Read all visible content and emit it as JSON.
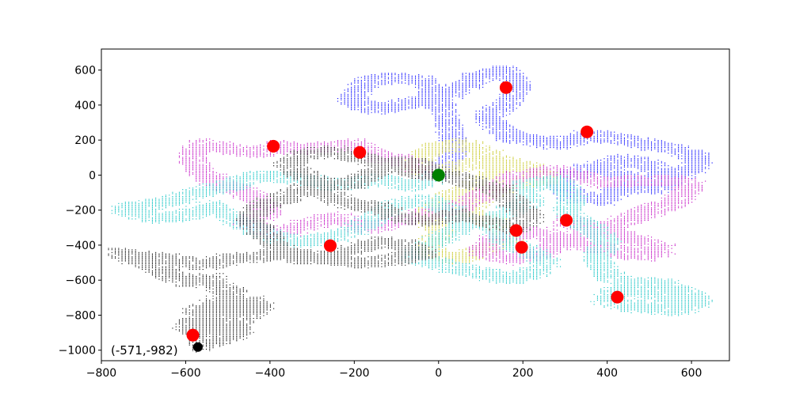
{
  "chart_data": {
    "type": "scatter",
    "title": "",
    "xlabel": "",
    "ylabel": "",
    "xlim": [
      -800,
      690
    ],
    "ylim": [
      -1060,
      720
    ],
    "xticks": [
      -800,
      -600,
      -400,
      -200,
      0,
      200,
      400,
      600
    ],
    "yticks": [
      -1000,
      -800,
      -600,
      -400,
      -200,
      0,
      200,
      400,
      600
    ],
    "xtick_labels": [
      "−800",
      "−600",
      "−400",
      "−200",
      "0",
      "200",
      "400",
      "600"
    ],
    "ytick_labels": [
      "−1000",
      "−800",
      "−600",
      "−400",
      "−200",
      "0",
      "200",
      "400",
      "600"
    ],
    "grid": false,
    "walk_series": [
      {
        "color": "#0000ff",
        "points": [
          [
            -5,
            -5
          ],
          [
            40,
            150
          ],
          [
            10,
            380
          ],
          [
            -40,
            540
          ],
          [
            -120,
            560
          ],
          [
            -180,
            520
          ],
          [
            -210,
            430
          ],
          [
            -150,
            380
          ],
          [
            -50,
            420
          ],
          [
            30,
            470
          ],
          [
            90,
            560
          ],
          [
            160,
            600
          ],
          [
            190,
            520
          ],
          [
            170,
            430
          ],
          [
            110,
            330
          ],
          [
            170,
            220
          ],
          [
            280,
            180
          ],
          [
            360,
            230
          ],
          [
            450,
            200
          ],
          [
            560,
            150
          ],
          [
            620,
            100
          ],
          [
            600,
            30
          ],
          [
            530,
            -10
          ],
          [
            440,
            -60
          ],
          [
            390,
            -140
          ],
          [
            320,
            -120
          ],
          [
            280,
            -40
          ],
          [
            350,
            40
          ],
          [
            440,
            90
          ],
          [
            520,
            40
          ],
          [
            560,
            -30
          ],
          [
            500,
            -80
          ],
          [
            400,
            30
          ]
        ]
      },
      {
        "color": "#bfbf00",
        "points": [
          [
            -5,
            -5
          ],
          [
            -60,
            60
          ],
          [
            -20,
            150
          ],
          [
            60,
            180
          ],
          [
            120,
            120
          ],
          [
            140,
            20
          ],
          [
            80,
            -60
          ],
          [
            20,
            -130
          ],
          [
            -30,
            -240
          ],
          [
            10,
            -330
          ],
          [
            -30,
            -420
          ],
          [
            30,
            -480
          ],
          [
            100,
            -430
          ],
          [
            170,
            -360
          ],
          [
            130,
            -270
          ],
          [
            60,
            -200
          ],
          [
            100,
            -120
          ],
          [
            180,
            -40
          ],
          [
            260,
            -20
          ],
          [
            220,
            40
          ],
          [
            140,
            80
          ],
          [
            60,
            60
          ],
          [
            0,
            0
          ]
        ]
      },
      {
        "color": "#bf00bf",
        "points": [
          [
            -5,
            -5
          ],
          [
            -80,
            80
          ],
          [
            -150,
            110
          ],
          [
            -200,
            180
          ],
          [
            -280,
            160
          ],
          [
            -340,
            150
          ],
          [
            -380,
            170
          ],
          [
            -420,
            130
          ],
          [
            -500,
            150
          ],
          [
            -560,
            180
          ],
          [
            -590,
            110
          ],
          [
            -560,
            0
          ],
          [
            -500,
            -60
          ],
          [
            -440,
            -120
          ],
          [
            -400,
            -200
          ],
          [
            -460,
            -280
          ],
          [
            -380,
            -330
          ],
          [
            -300,
            -270
          ],
          [
            -240,
            -240
          ],
          [
            -170,
            -300
          ],
          [
            -100,
            -260
          ],
          [
            -20,
            -220
          ],
          [
            60,
            -170
          ],
          [
            110,
            -100
          ],
          [
            180,
            -10
          ],
          [
            280,
            30
          ],
          [
            390,
            -40
          ],
          [
            460,
            -30
          ],
          [
            540,
            -30
          ],
          [
            600,
            -50
          ],
          [
            560,
            -150
          ],
          [
            480,
            -220
          ],
          [
            400,
            -300
          ],
          [
            320,
            -350
          ],
          [
            260,
            -430
          ],
          [
            180,
            -480
          ],
          [
            100,
            -430
          ],
          [
            140,
            -350
          ],
          [
            230,
            -320
          ],
          [
            320,
            -380
          ],
          [
            400,
            -420
          ],
          [
            480,
            -460
          ],
          [
            530,
            -420
          ],
          [
            460,
            -360
          ],
          [
            380,
            -300
          ],
          [
            300,
            -260
          ]
        ]
      },
      {
        "color": "#00bfbf",
        "points": [
          [
            -5,
            -5
          ],
          [
            -70,
            -60
          ],
          [
            -150,
            -20
          ],
          [
            -240,
            -60
          ],
          [
            -300,
            -30
          ],
          [
            -370,
            -10
          ],
          [
            -440,
            0
          ],
          [
            -500,
            -60
          ],
          [
            -560,
            -90
          ],
          [
            -620,
            -130
          ],
          [
            -690,
            -170
          ],
          [
            -750,
            -190
          ],
          [
            -680,
            -240
          ],
          [
            -600,
            -230
          ],
          [
            -540,
            -170
          ],
          [
            -490,
            -250
          ],
          [
            -440,
            -300
          ],
          [
            -380,
            -360
          ],
          [
            -320,
            -380
          ],
          [
            -250,
            -350
          ],
          [
            -200,
            -310
          ],
          [
            -150,
            -240
          ],
          [
            -100,
            -160
          ],
          [
            -30,
            -140
          ],
          [
            30,
            -200
          ],
          [
            60,
            -290
          ],
          [
            0,
            -360
          ],
          [
            -60,
            -460
          ],
          [
            20,
            -520
          ],
          [
            110,
            -560
          ],
          [
            170,
            -590
          ],
          [
            220,
            -560
          ],
          [
            260,
            -500
          ],
          [
            220,
            -440
          ],
          [
            160,
            -380
          ],
          [
            120,
            -280
          ],
          [
            160,
            -200
          ],
          [
            220,
            -140
          ],
          [
            200,
            -60
          ],
          [
            280,
            -30
          ],
          [
            320,
            -120
          ],
          [
            300,
            -220
          ],
          [
            360,
            -300
          ],
          [
            400,
            -380
          ],
          [
            370,
            -470
          ],
          [
            400,
            -560
          ],
          [
            450,
            -620
          ],
          [
            520,
            -610
          ],
          [
            580,
            -660
          ],
          [
            620,
            -720
          ],
          [
            560,
            -770
          ],
          [
            500,
            -760
          ],
          [
            430,
            -730
          ],
          [
            390,
            -700
          ],
          [
            440,
            -640
          ],
          [
            500,
            -680
          ],
          [
            560,
            -720
          ],
          [
            610,
            -700
          ],
          [
            520,
            -650
          ]
        ]
      },
      {
        "color": "#000000",
        "points": [
          [
            -5,
            -5
          ],
          [
            -60,
            20
          ],
          [
            -120,
            60
          ],
          [
            -200,
            110
          ],
          [
            -260,
            140
          ],
          [
            -320,
            120
          ],
          [
            -360,
            60
          ],
          [
            -320,
            0
          ],
          [
            -260,
            -60
          ],
          [
            -200,
            -40
          ],
          [
            -150,
            20
          ],
          [
            -100,
            80
          ],
          [
            -40,
            60
          ],
          [
            20,
            0
          ],
          [
            80,
            -40
          ],
          [
            140,
            -80
          ],
          [
            180,
            -160
          ],
          [
            220,
            -240
          ],
          [
            180,
            -300
          ],
          [
            110,
            -260
          ],
          [
            40,
            -220
          ],
          [
            -30,
            -260
          ],
          [
            -90,
            -240
          ],
          [
            -150,
            -180
          ],
          [
            -210,
            -160
          ],
          [
            -270,
            -110
          ],
          [
            -300,
            -60
          ],
          [
            -360,
            -120
          ],
          [
            -420,
            -170
          ],
          [
            -450,
            -250
          ],
          [
            -420,
            -320
          ],
          [
            -380,
            -420
          ],
          [
            -330,
            -480
          ],
          [
            -260,
            -460
          ],
          [
            -200,
            -420
          ],
          [
            -140,
            -380
          ],
          [
            -80,
            -400
          ],
          [
            -30,
            -440
          ],
          [
            -100,
            -480
          ],
          [
            -180,
            -500
          ],
          [
            -260,
            -480
          ],
          [
            -340,
            -440
          ],
          [
            -420,
            -460
          ],
          [
            -500,
            -480
          ],
          [
            -560,
            -510
          ],
          [
            -640,
            -480
          ],
          [
            -720,
            -460
          ],
          [
            -760,
            -440
          ],
          [
            -700,
            -500
          ],
          [
            -640,
            -560
          ],
          [
            -600,
            -610
          ],
          [
            -540,
            -590
          ],
          [
            -520,
            -640
          ],
          [
            -480,
            -680
          ],
          [
            -520,
            -720
          ],
          [
            -580,
            -780
          ],
          [
            -540,
            -800
          ],
          [
            -470,
            -800
          ],
          [
            -420,
            -760
          ],
          [
            -440,
            -720
          ],
          [
            -500,
            -760
          ],
          [
            -560,
            -820
          ],
          [
            -600,
            -860
          ],
          [
            -560,
            -900
          ],
          [
            -520,
            -860
          ],
          [
            -470,
            -850
          ],
          [
            -480,
            -900
          ],
          [
            -520,
            -940
          ],
          [
            -560,
            -960
          ],
          [
            -571,
            -982
          ]
        ]
      }
    ],
    "red_points": [
      [
        160,
        500
      ],
      [
        352,
        247
      ],
      [
        -392,
        165
      ],
      [
        -187,
        130
      ],
      [
        303,
        -258
      ],
      [
        184,
        -316
      ],
      [
        197,
        -412
      ],
      [
        -257,
        -403
      ],
      [
        424,
        -697
      ],
      [
        -583,
        -914
      ]
    ],
    "start_point": [
      0,
      0
    ],
    "end_point": [
      -571,
      -982
    ],
    "end_label": "(-571,-982)",
    "colors": {
      "red": "#ff0000",
      "green": "#008000",
      "end": "#000000"
    }
  }
}
